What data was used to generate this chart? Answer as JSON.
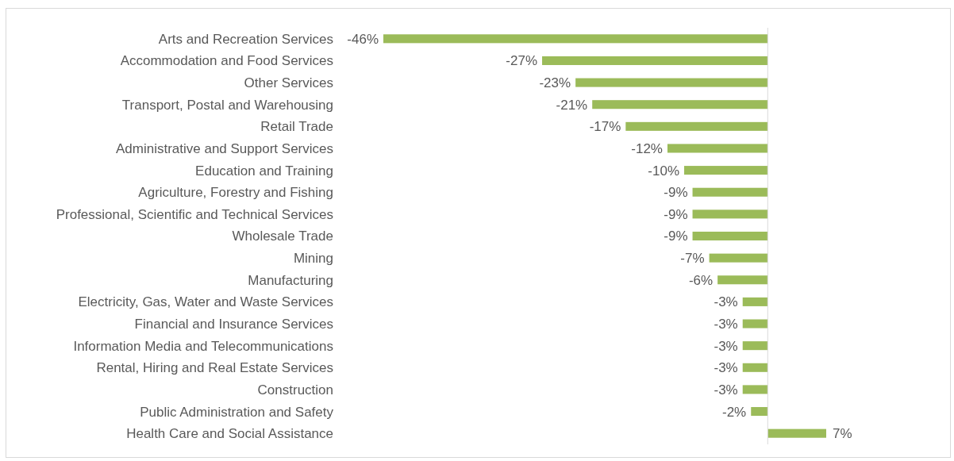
{
  "chart_data": {
    "type": "bar",
    "orientation": "horizontal",
    "data_labels": true,
    "categories": [
      "Arts and Recreation Services",
      "Accommodation and Food Services",
      "Other Services",
      "Transport, Postal and Warehousing",
      "Retail Trade",
      "Administrative and Support Services",
      "Education and Training",
      "Agriculture, Forestry and Fishing",
      "Professional, Scientific and Technical Services",
      "Wholesale Trade",
      "Mining",
      "Manufacturing",
      "Electricity, Gas, Water and Waste Services",
      "Financial and Insurance Services",
      "Information Media and Telecommunications",
      "Rental, Hiring and Real Estate Services",
      "Construction",
      "Public Administration and Safety",
      "Health Care and Social Assistance"
    ],
    "values": [
      -46,
      -27,
      -23,
      -21,
      -17,
      -12,
      -10,
      -9,
      -9,
      -9,
      -7,
      -6,
      -3,
      -3,
      -3,
      -3,
      -3,
      -2,
      7
    ],
    "value_labels": [
      "-46%",
      "-27%",
      "-23%",
      "-21%",
      "-17%",
      "-12%",
      "-10%",
      "-9%",
      "-9%",
      "-9%",
      "-7%",
      "-6%",
      "-3%",
      "-3%",
      "-3%",
      "-3%",
      "-3%",
      "-2%",
      "7%"
    ],
    "color": "#9bbb59"
  }
}
